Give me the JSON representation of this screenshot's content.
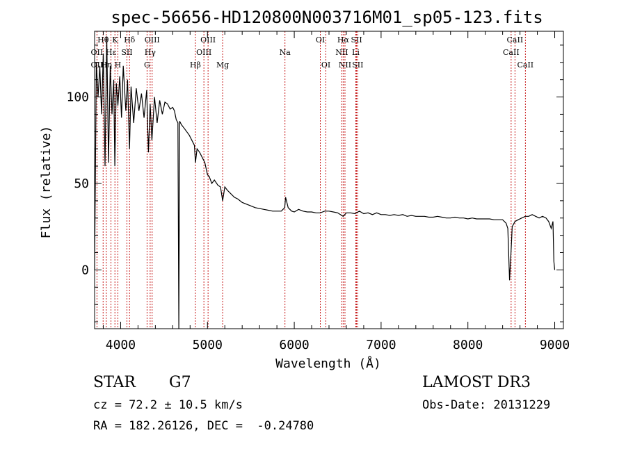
{
  "chart_data": {
    "type": "line",
    "title": "spec-56656-HD120800N003716M01_sp05-123.fits",
    "xlabel": "Wavelength (Å)",
    "ylabel": "Flux (relative)",
    "xlim": [
      3700,
      9100
    ],
    "ylim": [
      -34,
      138
    ],
    "xticks": [
      4000,
      5000,
      6000,
      7000,
      8000,
      9000
    ],
    "yticks": [
      0,
      50,
      100
    ],
    "grid": false,
    "line_color": "#000000",
    "marker_color": "#c00000",
    "series": [
      {
        "x": [
          3700,
          3720,
          3740,
          3760,
          3780,
          3800,
          3820,
          3840,
          3860,
          3880,
          3900,
          3920,
          3933,
          3950,
          3968,
          3990,
          4010,
          4030,
          4060,
          4080,
          4102,
          4120,
          4150,
          4180,
          4210,
          4240,
          4270,
          4300,
          4320,
          4340,
          4360,
          4390,
          4420,
          4450,
          4480,
          4510,
          4540,
          4570,
          4600,
          4620,
          4640,
          4660,
          4670,
          4680,
          4700,
          4730,
          4760,
          4790,
          4820,
          4850,
          4862,
          4880,
          4910,
          4940,
          4970,
          5000,
          5020,
          5050,
          5080,
          5120,
          5150,
          5175,
          5200,
          5230,
          5270,
          5310,
          5350,
          5400,
          5450,
          5500,
          5550,
          5600,
          5650,
          5700,
          5750,
          5800,
          5850,
          5890,
          5900,
          5930,
          5970,
          6000,
          6050,
          6100,
          6150,
          6200,
          6250,
          6300,
          6350,
          6400,
          6450,
          6500,
          6563,
          6600,
          6650,
          6700,
          6750,
          6800,
          6850,
          6900,
          6950,
          7000,
          7050,
          7100,
          7150,
          7200,
          7250,
          7300,
          7350,
          7400,
          7450,
          7500,
          7550,
          7600,
          7650,
          7700,
          7750,
          7800,
          7850,
          7900,
          7950,
          8000,
          8050,
          8100,
          8150,
          8200,
          8250,
          8300,
          8350,
          8400,
          8440,
          8460,
          8480,
          8498,
          8510,
          8542,
          8580,
          8620,
          8662,
          8700,
          8740,
          8780,
          8820,
          8860,
          8900,
          8930,
          8960,
          8980,
          8990,
          9000
        ],
        "y": [
          0,
          120,
          100,
          118,
          90,
          125,
          60,
          135,
          62,
          118,
          90,
          110,
          60,
          108,
          95,
          112,
          88,
          118,
          92,
          110,
          70,
          106,
          85,
          105,
          92,
          102,
          88,
          104,
          68,
          96,
          75,
          100,
          85,
          98,
          90,
          97,
          96,
          93,
          94,
          92,
          87,
          85,
          -34,
          86,
          84,
          82,
          80,
          78,
          75,
          72,
          62,
          70,
          68,
          65,
          62,
          55,
          54,
          50,
          52,
          49,
          48,
          40,
          48,
          46,
          44,
          42,
          41,
          39,
          38,
          37,
          36,
          35.5,
          35,
          34.5,
          34,
          34,
          34,
          36,
          42,
          36,
          34,
          33.5,
          35,
          34,
          33.5,
          33.5,
          33,
          33,
          34,
          34,
          33.5,
          33,
          31,
          33,
          33,
          32.5,
          34,
          32.5,
          33,
          32,
          33,
          32,
          32,
          31.5,
          32,
          31.5,
          32,
          31,
          31.5,
          31,
          31,
          31,
          30.5,
          30.5,
          31,
          30.5,
          30,
          30,
          30.5,
          30,
          30,
          29.5,
          30,
          29.5,
          29.5,
          29.5,
          29.5,
          29,
          29,
          29,
          27,
          24,
          -6,
          12,
          25,
          28,
          29,
          30,
          31,
          31,
          32,
          31,
          30,
          31,
          30,
          28,
          24,
          28,
          5,
          0
        ]
      }
    ],
    "lines": [
      {
        "name": "Hθ",
        "x": 3798,
        "row": 1
      },
      {
        "name": "OII",
        "x": 3727,
        "row": 2
      },
      {
        "name": "OII",
        "x": 3727,
        "row": 3
      },
      {
        "name": "Hη",
        "x": 3835,
        "row": 3
      },
      {
        "name": "K",
        "x": 3934,
        "row": 1
      },
      {
        "name": "Hε",
        "x": 3889,
        "row": 2
      },
      {
        "name": "H",
        "x": 3968,
        "row": 3
      },
      {
        "name": "Hδ",
        "x": 4102,
        "row": 1
      },
      {
        "name": "SII",
        "x": 4072,
        "row": 2
      },
      {
        "name": "OIII",
        "x": 4363,
        "row": 1
      },
      {
        "name": "Hγ",
        "x": 4340,
        "row": 2
      },
      {
        "name": "G",
        "x": 4304,
        "row": 3
      },
      {
        "name": "Hβ",
        "x": 4861,
        "row": 3
      },
      {
        "name": "OIII",
        "x": 5007,
        "row": 1
      },
      {
        "name": "OIII",
        "x": 4959,
        "row": 2
      },
      {
        "name": "Mg",
        "x": 5175,
        "row": 3
      },
      {
        "name": "Na",
        "x": 5893,
        "row": 2
      },
      {
        "name": "OI",
        "x": 6300,
        "row": 1
      },
      {
        "name": "OI",
        "x": 6364,
        "row": 3
      },
      {
        "name": "Hα",
        "x": 6563,
        "row": 1
      },
      {
        "name": "NII",
        "x": 6548,
        "row": 2
      },
      {
        "name": "NII",
        "x": 6584,
        "row": 3
      },
      {
        "name": "SII",
        "x": 6717,
        "row": 1
      },
      {
        "name": "Li",
        "x": 6708,
        "row": 2
      },
      {
        "name": "SII",
        "x": 6731,
        "row": 3
      },
      {
        "name": "CaII",
        "x": 8542,
        "row": 1
      },
      {
        "name": "CaII",
        "x": 8498,
        "row": 2
      },
      {
        "name": "CaII",
        "x": 8662,
        "row": 3
      }
    ]
  },
  "info": {
    "object_type": "STAR",
    "subclass": "G7",
    "cz": "cz = 72.2 ± 10.5 km/s",
    "coords": "RA = 182.26126, DEC =  -0.24780",
    "survey": "LAMOST DR3",
    "obs_date": "Obs-Date: 20131229"
  }
}
